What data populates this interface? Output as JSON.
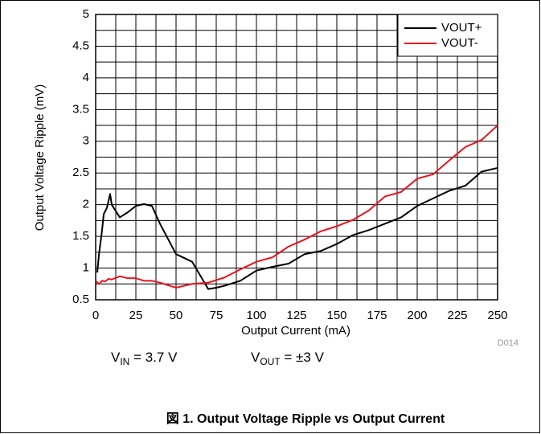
{
  "chart_data": {
    "type": "line",
    "xlabel": "Output Current (mA)",
    "ylabel": "Output Voltage Ripple (mV)",
    "figure_id": "D014",
    "caption": "図 1. Output Voltage Ripple vs Output Current",
    "annotations": [
      {
        "main": "V",
        "sub": "IN",
        "rest": " = 3.7 V"
      },
      {
        "main": "V",
        "sub": "OUT",
        "rest": " = ±3 V"
      }
    ],
    "xlim": [
      0,
      250
    ],
    "ylim": [
      0.5,
      5
    ],
    "xticks": [
      0,
      25,
      50,
      75,
      100,
      125,
      150,
      175,
      200,
      225,
      250
    ],
    "yticks": [
      0.5,
      1,
      1.5,
      2,
      2.5,
      3,
      3.5,
      4,
      4.5,
      5
    ],
    "xminorticks": [
      12.5,
      37.5,
      62.5,
      87.5,
      112.5,
      137.5,
      162.5,
      187.5,
      212.5,
      237.5
    ],
    "yminorticks": [
      0.75,
      1.25,
      1.75,
      2.25,
      2.75,
      3.25,
      3.75,
      4.25,
      4.75
    ],
    "grid": true,
    "legend": "upper right",
    "series": [
      {
        "name": "VOUT+",
        "color": "#000000",
        "x": [
          1,
          2,
          4,
          5,
          7,
          9,
          10,
          15,
          20,
          25,
          30,
          35,
          40,
          50,
          60,
          70,
          75,
          80,
          90,
          100,
          110,
          120,
          130,
          140,
          150,
          160,
          170,
          180,
          190,
          200,
          210,
          220,
          230,
          240,
          250
        ],
        "values": [
          0.93,
          1.2,
          1.6,
          1.85,
          1.95,
          2.17,
          2.0,
          1.8,
          1.88,
          1.98,
          2.01,
          1.98,
          1.7,
          1.22,
          1.1,
          0.67,
          0.69,
          0.72,
          0.8,
          0.96,
          1.02,
          1.07,
          1.22,
          1.27,
          1.38,
          1.52,
          1.6,
          1.7,
          1.8,
          1.98,
          2.1,
          2.22,
          2.3,
          2.52,
          2.58
        ]
      },
      {
        "name": "VOUT-",
        "color": "#e8141c",
        "x": [
          0,
          2,
          4,
          6,
          8,
          10,
          15,
          20,
          25,
          30,
          35,
          40,
          50,
          60,
          70,
          80,
          90,
          100,
          110,
          120,
          130,
          140,
          150,
          160,
          170,
          180,
          190,
          200,
          210,
          220,
          230,
          240,
          250
        ],
        "values": [
          0.8,
          0.75,
          0.8,
          0.79,
          0.83,
          0.82,
          0.87,
          0.84,
          0.84,
          0.8,
          0.8,
          0.77,
          0.69,
          0.75,
          0.77,
          0.85,
          0.98,
          1.1,
          1.17,
          1.34,
          1.45,
          1.58,
          1.66,
          1.76,
          1.91,
          2.13,
          2.2,
          2.41,
          2.48,
          2.7,
          2.91,
          3.02,
          3.25
        ]
      }
    ]
  }
}
